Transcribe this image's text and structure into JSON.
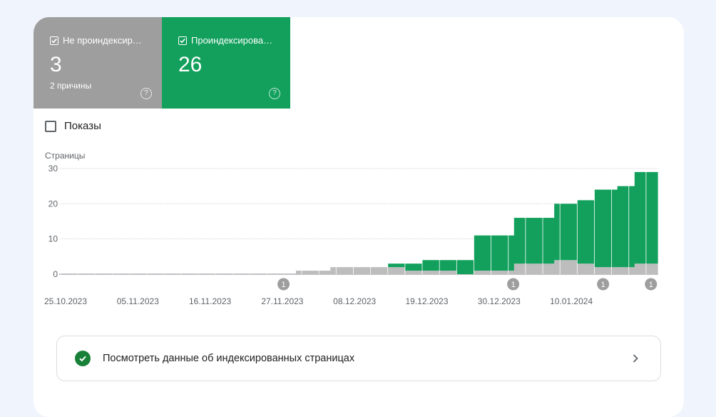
{
  "tiles": {
    "not_indexed": {
      "label": "Не проиндексир…",
      "count": "3",
      "subtitle": "2 причины",
      "color": "#9e9e9e"
    },
    "indexed": {
      "label": "Проиндексирова…",
      "count": "26",
      "color": "#12a05c"
    }
  },
  "impressions_label": "Показы",
  "chart_data": {
    "type": "bar",
    "stacked": true,
    "ylabel": "Страницы",
    "ylim": [
      0,
      30
    ],
    "yticks": [
      "0",
      "10",
      "20",
      "30"
    ],
    "xtick_labels": [
      "25.10.2023",
      "05.11.2023",
      "16.11.2023",
      "27.11.2023",
      "08.12.2023",
      "19.12.2023",
      "30.12.2023",
      "10.01.2024"
    ],
    "grid": true,
    "series": [
      {
        "color": "#bdbdbd",
        "values": [
          0,
          0,
          0,
          0,
          0,
          0,
          0,
          0,
          0,
          0,
          0,
          0,
          0,
          0,
          0,
          0,
          0,
          0,
          0,
          0,
          0,
          0,
          0,
          0,
          0,
          0,
          0,
          0,
          0,
          0,
          0,
          0,
          0,
          0,
          0,
          0,
          0,
          0,
          0,
          0,
          0,
          0,
          0,
          0,
          0,
          0,
          0,
          0,
          0,
          0,
          0,
          0,
          0,
          0,
          0,
          0,
          0,
          0,
          0,
          0,
          0,
          0,
          0,
          0,
          0,
          0,
          0,
          0,
          0,
          0,
          0,
          0,
          0,
          0,
          0,
          0,
          0,
          0,
          0,
          0,
          0,
          0,
          1,
          1,
          1,
          1,
          1,
          1,
          1,
          1,
          1,
          1,
          1,
          1,
          2,
          2,
          2,
          2,
          2,
          2,
          2,
          2,
          2,
          2,
          2,
          2,
          2,
          2,
          2,
          2,
          2,
          2,
          2,
          2,
          2,
          2,
          2,
          2,
          2,
          2,
          1,
          1,
          1,
          1,
          1,
          1,
          1,
          1,
          1,
          1,
          1,
          1,
          1,
          1,
          1,
          1,
          1,
          1,
          0,
          0,
          0,
          0,
          0,
          0,
          1,
          1,
          1,
          1,
          1,
          1,
          1,
          1,
          1,
          1,
          1,
          1,
          1,
          1,
          3,
          3,
          3,
          3,
          3,
          3,
          3,
          3,
          3,
          3,
          3,
          3,
          3,
          3,
          4,
          4,
          4,
          4,
          4,
          4,
          4,
          4,
          3,
          3,
          3,
          3,
          3,
          3,
          2,
          2,
          2,
          2,
          2,
          2,
          2,
          2,
          2,
          2,
          2,
          2,
          2,
          2,
          3,
          3,
          3,
          3,
          3,
          3,
          3,
          3
        ]
      },
      {
        "color": "#12a05c",
        "values": [
          0,
          0,
          0,
          0,
          0,
          0,
          0,
          0,
          0,
          0,
          0,
          0,
          0,
          0,
          0,
          0,
          0,
          0,
          0,
          0,
          0,
          0,
          0,
          0,
          0,
          0,
          0,
          0,
          0,
          0,
          0,
          0,
          0,
          0,
          0,
          0,
          0,
          0,
          0,
          0,
          0,
          0,
          0,
          0,
          0,
          0,
          0,
          0,
          0,
          0,
          0,
          0,
          0,
          0,
          0,
          0,
          0,
          0,
          0,
          0,
          0,
          0,
          0,
          0,
          0,
          0,
          0,
          0,
          0,
          0,
          0,
          0,
          0,
          0,
          0,
          0,
          0,
          0,
          0,
          0,
          0,
          0,
          0,
          0,
          0,
          0,
          0,
          0,
          0,
          0,
          0,
          0,
          0,
          0,
          0,
          0,
          0,
          0,
          0,
          0,
          0,
          0,
          0,
          0,
          0,
          0,
          0,
          0,
          0,
          0,
          0,
          0,
          0,
          0,
          1,
          1,
          1,
          1,
          1,
          1,
          2,
          2,
          2,
          2,
          2,
          2,
          3,
          3,
          3,
          3,
          3,
          3,
          3,
          3,
          3,
          3,
          3,
          3,
          4,
          4,
          4,
          4,
          4,
          4,
          10,
          10,
          10,
          10,
          10,
          10,
          10,
          10,
          10,
          10,
          10,
          10,
          10,
          10,
          13,
          13,
          13,
          13,
          13,
          13,
          13,
          13,
          13,
          13,
          13,
          13,
          13,
          13,
          16,
          16,
          16,
          16,
          16,
          16,
          16,
          16,
          18,
          18,
          18,
          18,
          18,
          18,
          22,
          22,
          22,
          22,
          22,
          22,
          22,
          22,
          23,
          23,
          23,
          23,
          23,
          23,
          26,
          26,
          26,
          26,
          26,
          26,
          26,
          26
        ]
      }
    ],
    "annotations": [
      "1",
      "1",
      "1",
      "1"
    ]
  },
  "view_link": {
    "label": "Посмотреть данные об индексированных страницах"
  }
}
